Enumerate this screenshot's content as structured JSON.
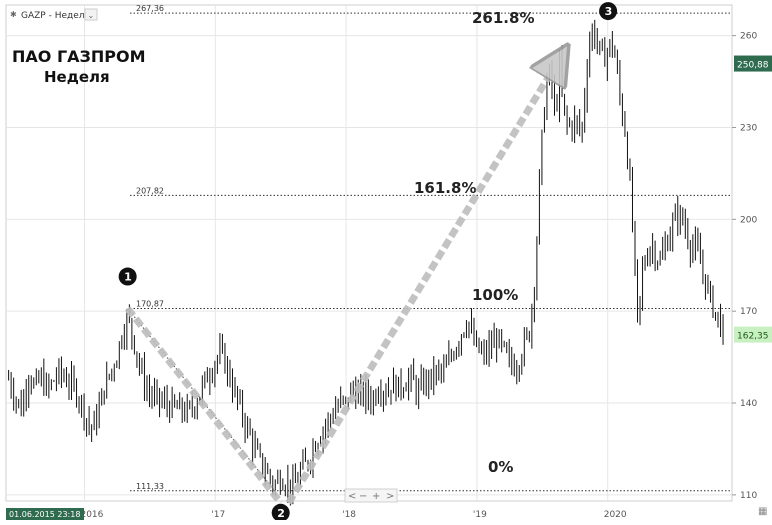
{
  "header": {
    "symbol_label": "GAZP - Неделя"
  },
  "overlay": {
    "line1": "ПАО ГАЗПРОМ",
    "line2": "Неделя"
  },
  "chart_data": {
    "type": "candlestick",
    "instrument": "GAZP",
    "timeframe": "Неделя",
    "ylim": [
      108,
      270
    ],
    "y_ticks": [
      110,
      140,
      170,
      200,
      230,
      260
    ],
    "y_tick_labels": [
      "110",
      "140",
      "170",
      "200",
      "230",
      "260"
    ],
    "x_range": [
      2015.4,
      2020.95
    ],
    "x_ticks": [
      {
        "x": 2016.0,
        "label": "2016"
      },
      {
        "x": 2017.0,
        "label": "'17"
      },
      {
        "x": 2018.0,
        "label": "'18"
      },
      {
        "x": 2019.0,
        "label": "'19"
      },
      {
        "x": 2020.0,
        "label": "2020"
      }
    ],
    "start_date_label": "01.06.2015 23:18",
    "fib_levels": [
      {
        "value": 267.36,
        "label": "267,36",
        "pct": "261.8%"
      },
      {
        "value": 207.82,
        "label": "207,82",
        "pct": "161.8%"
      },
      {
        "value": 170.87,
        "label": "170,87",
        "pct": "100%"
      },
      {
        "value": 111.33,
        "label": "111,33",
        "pct": "0%"
      }
    ],
    "pivots": [
      {
        "n": "1",
        "x": 2016.33,
        "y": 170.87
      },
      {
        "n": "2",
        "x": 2017.5,
        "y": 111.33
      },
      {
        "n": "3",
        "x": 2019.85,
        "y": 267.36
      }
    ],
    "last_price": {
      "value": 162.35,
      "label": "162,35"
    },
    "marker_price": {
      "value": 250.88,
      "label": "250,88"
    },
    "close_path": [
      [
        2015.42,
        148
      ],
      [
        2015.47,
        142
      ],
      [
        2015.52,
        138
      ],
      [
        2015.57,
        150
      ],
      [
        2015.62,
        145
      ],
      [
        2015.67,
        148
      ],
      [
        2015.72,
        144
      ],
      [
        2015.8,
        150
      ],
      [
        2015.88,
        147
      ],
      [
        2015.95,
        143
      ],
      [
        2016.0,
        137
      ],
      [
        2016.05,
        131
      ],
      [
        2016.1,
        136
      ],
      [
        2016.15,
        145
      ],
      [
        2016.2,
        150
      ],
      [
        2016.25,
        156
      ],
      [
        2016.3,
        165
      ],
      [
        2016.33,
        168
      ],
      [
        2016.38,
        160
      ],
      [
        2016.42,
        152
      ],
      [
        2016.47,
        145
      ],
      [
        2016.52,
        142
      ],
      [
        2016.6,
        140
      ],
      [
        2016.7,
        138
      ],
      [
        2016.8,
        137
      ],
      [
        2016.87,
        142
      ],
      [
        2016.93,
        148
      ],
      [
        2017.0,
        154
      ],
      [
        2017.05,
        156
      ],
      [
        2017.1,
        150
      ],
      [
        2017.15,
        143
      ],
      [
        2017.2,
        137
      ],
      [
        2017.25,
        131
      ],
      [
        2017.3,
        125
      ],
      [
        2017.35,
        120
      ],
      [
        2017.4,
        117
      ],
      [
        2017.45,
        113
      ],
      [
        2017.5,
        116
      ],
      [
        2017.55,
        114
      ],
      [
        2017.6,
        112
      ],
      [
        2017.65,
        118
      ],
      [
        2017.7,
        120
      ],
      [
        2017.75,
        126
      ],
      [
        2017.8,
        130
      ],
      [
        2017.85,
        133
      ],
      [
        2017.9,
        137
      ],
      [
        2017.95,
        140
      ],
      [
        2018.0,
        140
      ],
      [
        2018.05,
        145
      ],
      [
        2018.1,
        142
      ],
      [
        2018.15,
        143
      ],
      [
        2018.2,
        141
      ],
      [
        2018.25,
        146
      ],
      [
        2018.3,
        144
      ],
      [
        2018.35,
        146
      ],
      [
        2018.4,
        145
      ],
      [
        2018.45,
        147
      ],
      [
        2018.5,
        148
      ],
      [
        2018.55,
        143
      ],
      [
        2018.6,
        147
      ],
      [
        2018.65,
        148
      ],
      [
        2018.7,
        150
      ],
      [
        2018.75,
        150
      ],
      [
        2018.8,
        155
      ],
      [
        2018.85,
        160
      ],
      [
        2018.9,
        165
      ],
      [
        2018.93,
        168
      ],
      [
        2018.97,
        160
      ],
      [
        2019.0,
        158
      ],
      [
        2019.05,
        155
      ],
      [
        2019.1,
        158
      ],
      [
        2019.15,
        161
      ],
      [
        2019.2,
        157
      ],
      [
        2019.25,
        153
      ],
      [
        2019.3,
        152
      ],
      [
        2019.35,
        158
      ],
      [
        2019.4,
        163
      ],
      [
        2019.45,
        185
      ],
      [
        2019.48,
        215
      ],
      [
        2019.52,
        240
      ],
      [
        2019.55,
        248
      ],
      [
        2019.58,
        242
      ],
      [
        2019.6,
        232
      ],
      [
        2019.63,
        250
      ],
      [
        2019.66,
        235
      ],
      [
        2019.7,
        230
      ],
      [
        2019.75,
        232
      ],
      [
        2019.8,
        228
      ],
      [
        2019.85,
        255
      ],
      [
        2019.88,
        262
      ],
      [
        2019.92,
        258
      ],
      [
        2019.96,
        252
      ],
      [
        2020.0,
        255
      ],
      [
        2020.03,
        258
      ],
      [
        2020.06,
        252
      ],
      [
        2020.1,
        237
      ],
      [
        2020.13,
        230
      ],
      [
        2020.16,
        217
      ],
      [
        2020.2,
        190
      ],
      [
        2020.23,
        165
      ],
      [
        2020.27,
        185
      ],
      [
        2020.33,
        192
      ],
      [
        2020.4,
        186
      ],
      [
        2020.47,
        195
      ],
      [
        2020.53,
        202
      ],
      [
        2020.58,
        199
      ],
      [
        2020.63,
        192
      ],
      [
        2020.68,
        190
      ],
      [
        2020.73,
        182
      ],
      [
        2020.8,
        172
      ],
      [
        2020.85,
        167
      ],
      [
        2020.9,
        162
      ]
    ]
  }
}
